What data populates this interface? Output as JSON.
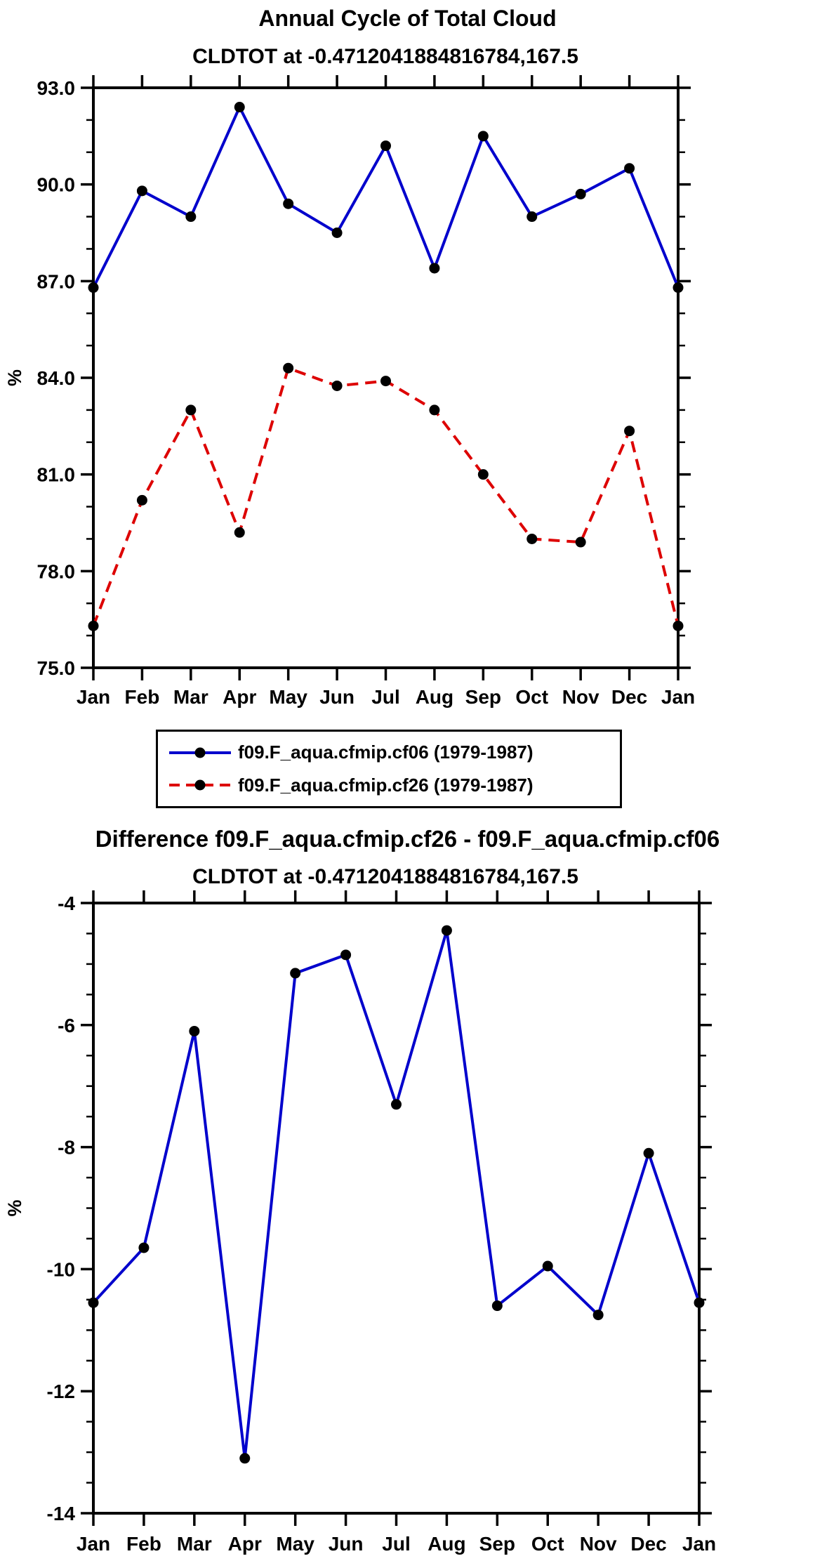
{
  "page": {
    "title": "Annual Cycle of Total Cloud",
    "subtitle": "CLDTOT at -0.4712041884816784,167.5",
    "difference_title": "Difference f09.F_aqua.cfmip.cf26 - f09.F_aqua.cfmip.cf06",
    "difference_subtitle": "CLDTOT at -0.4712041884816784,167.5"
  },
  "colors": {
    "axis": "#000000",
    "marker": "#000000",
    "series_cf06": "#0000cc",
    "series_cf26": "#dd0000"
  },
  "legend": {
    "items": [
      {
        "label": "f09.F_aqua.cfmip.cf06 (1979-1987)",
        "color": "#0000cc",
        "style": "solid"
      },
      {
        "label": "f09.F_aqua.cfmip.cf26 (1979-1987)",
        "color": "#dd0000",
        "style": "dashed"
      }
    ]
  },
  "chart_data": [
    {
      "type": "line",
      "title": "Annual Cycle of Total Cloud",
      "subtitle": "CLDTOT at -0.4712041884816784,167.5",
      "xlabel": "",
      "ylabel": "%",
      "categories": [
        "Jan",
        "Feb",
        "Mar",
        "Apr",
        "May",
        "Jun",
        "Jul",
        "Aug",
        "Sep",
        "Oct",
        "Nov",
        "Dec",
        "Jan"
      ],
      "ylim": [
        75.0,
        93.0
      ],
      "yticks": [
        75,
        78,
        81,
        84,
        87,
        90,
        93
      ],
      "ytick_labels": [
        "75.0",
        "78.0",
        "81.0",
        "84.0",
        "87.0",
        "90.0",
        "93.0"
      ],
      "minor_tick_interval": 1.0,
      "grid": false,
      "legend_position": "bottom",
      "series": [
        {
          "name": "f09.F_aqua.cfmip.cf06 (1979-1987)",
          "color": "#0000cc",
          "dash": "solid",
          "marker": "circle",
          "values": [
            86.8,
            89.8,
            89.0,
            92.4,
            89.4,
            88.5,
            91.2,
            87.4,
            91.5,
            89.0,
            89.7,
            90.5,
            86.8
          ]
        },
        {
          "name": "f09.F_aqua.cfmip.cf26 (1979-1987)",
          "color": "#dd0000",
          "dash": "dashed",
          "marker": "circle",
          "values": [
            76.3,
            80.2,
            83.0,
            79.2,
            84.3,
            83.75,
            83.9,
            83.0,
            81.0,
            79.0,
            78.9,
            82.35,
            76.3
          ]
        }
      ]
    },
    {
      "type": "line",
      "title": "Difference f09.F_aqua.cfmip.cf26 - f09.F_aqua.cfmip.cf06",
      "subtitle": "CLDTOT at -0.4712041884816784,167.5",
      "xlabel": "",
      "ylabel": "%",
      "categories": [
        "Jan",
        "Feb",
        "Mar",
        "Apr",
        "May",
        "Jun",
        "Jul",
        "Aug",
        "Sep",
        "Oct",
        "Nov",
        "Dec",
        "Jan"
      ],
      "ylim": [
        -14,
        -4
      ],
      "yticks": [
        -14,
        -12,
        -10,
        -8,
        -6,
        -4
      ],
      "ytick_labels": [
        "-14",
        "-12",
        "-10",
        "-8",
        "-6",
        "-4"
      ],
      "minor_tick_interval": 0.5,
      "grid": false,
      "legend_position": "none",
      "series": [
        {
          "name": "f09.F_aqua.cfmip.cf26 - f09.F_aqua.cfmip.cf06",
          "color": "#0000cc",
          "dash": "solid",
          "marker": "circle",
          "values": [
            -10.55,
            -9.65,
            -6.1,
            -13.1,
            -5.15,
            -4.85,
            -7.3,
            -4.45,
            -10.6,
            -9.95,
            -10.75,
            -8.1,
            -10.55
          ]
        }
      ]
    }
  ]
}
